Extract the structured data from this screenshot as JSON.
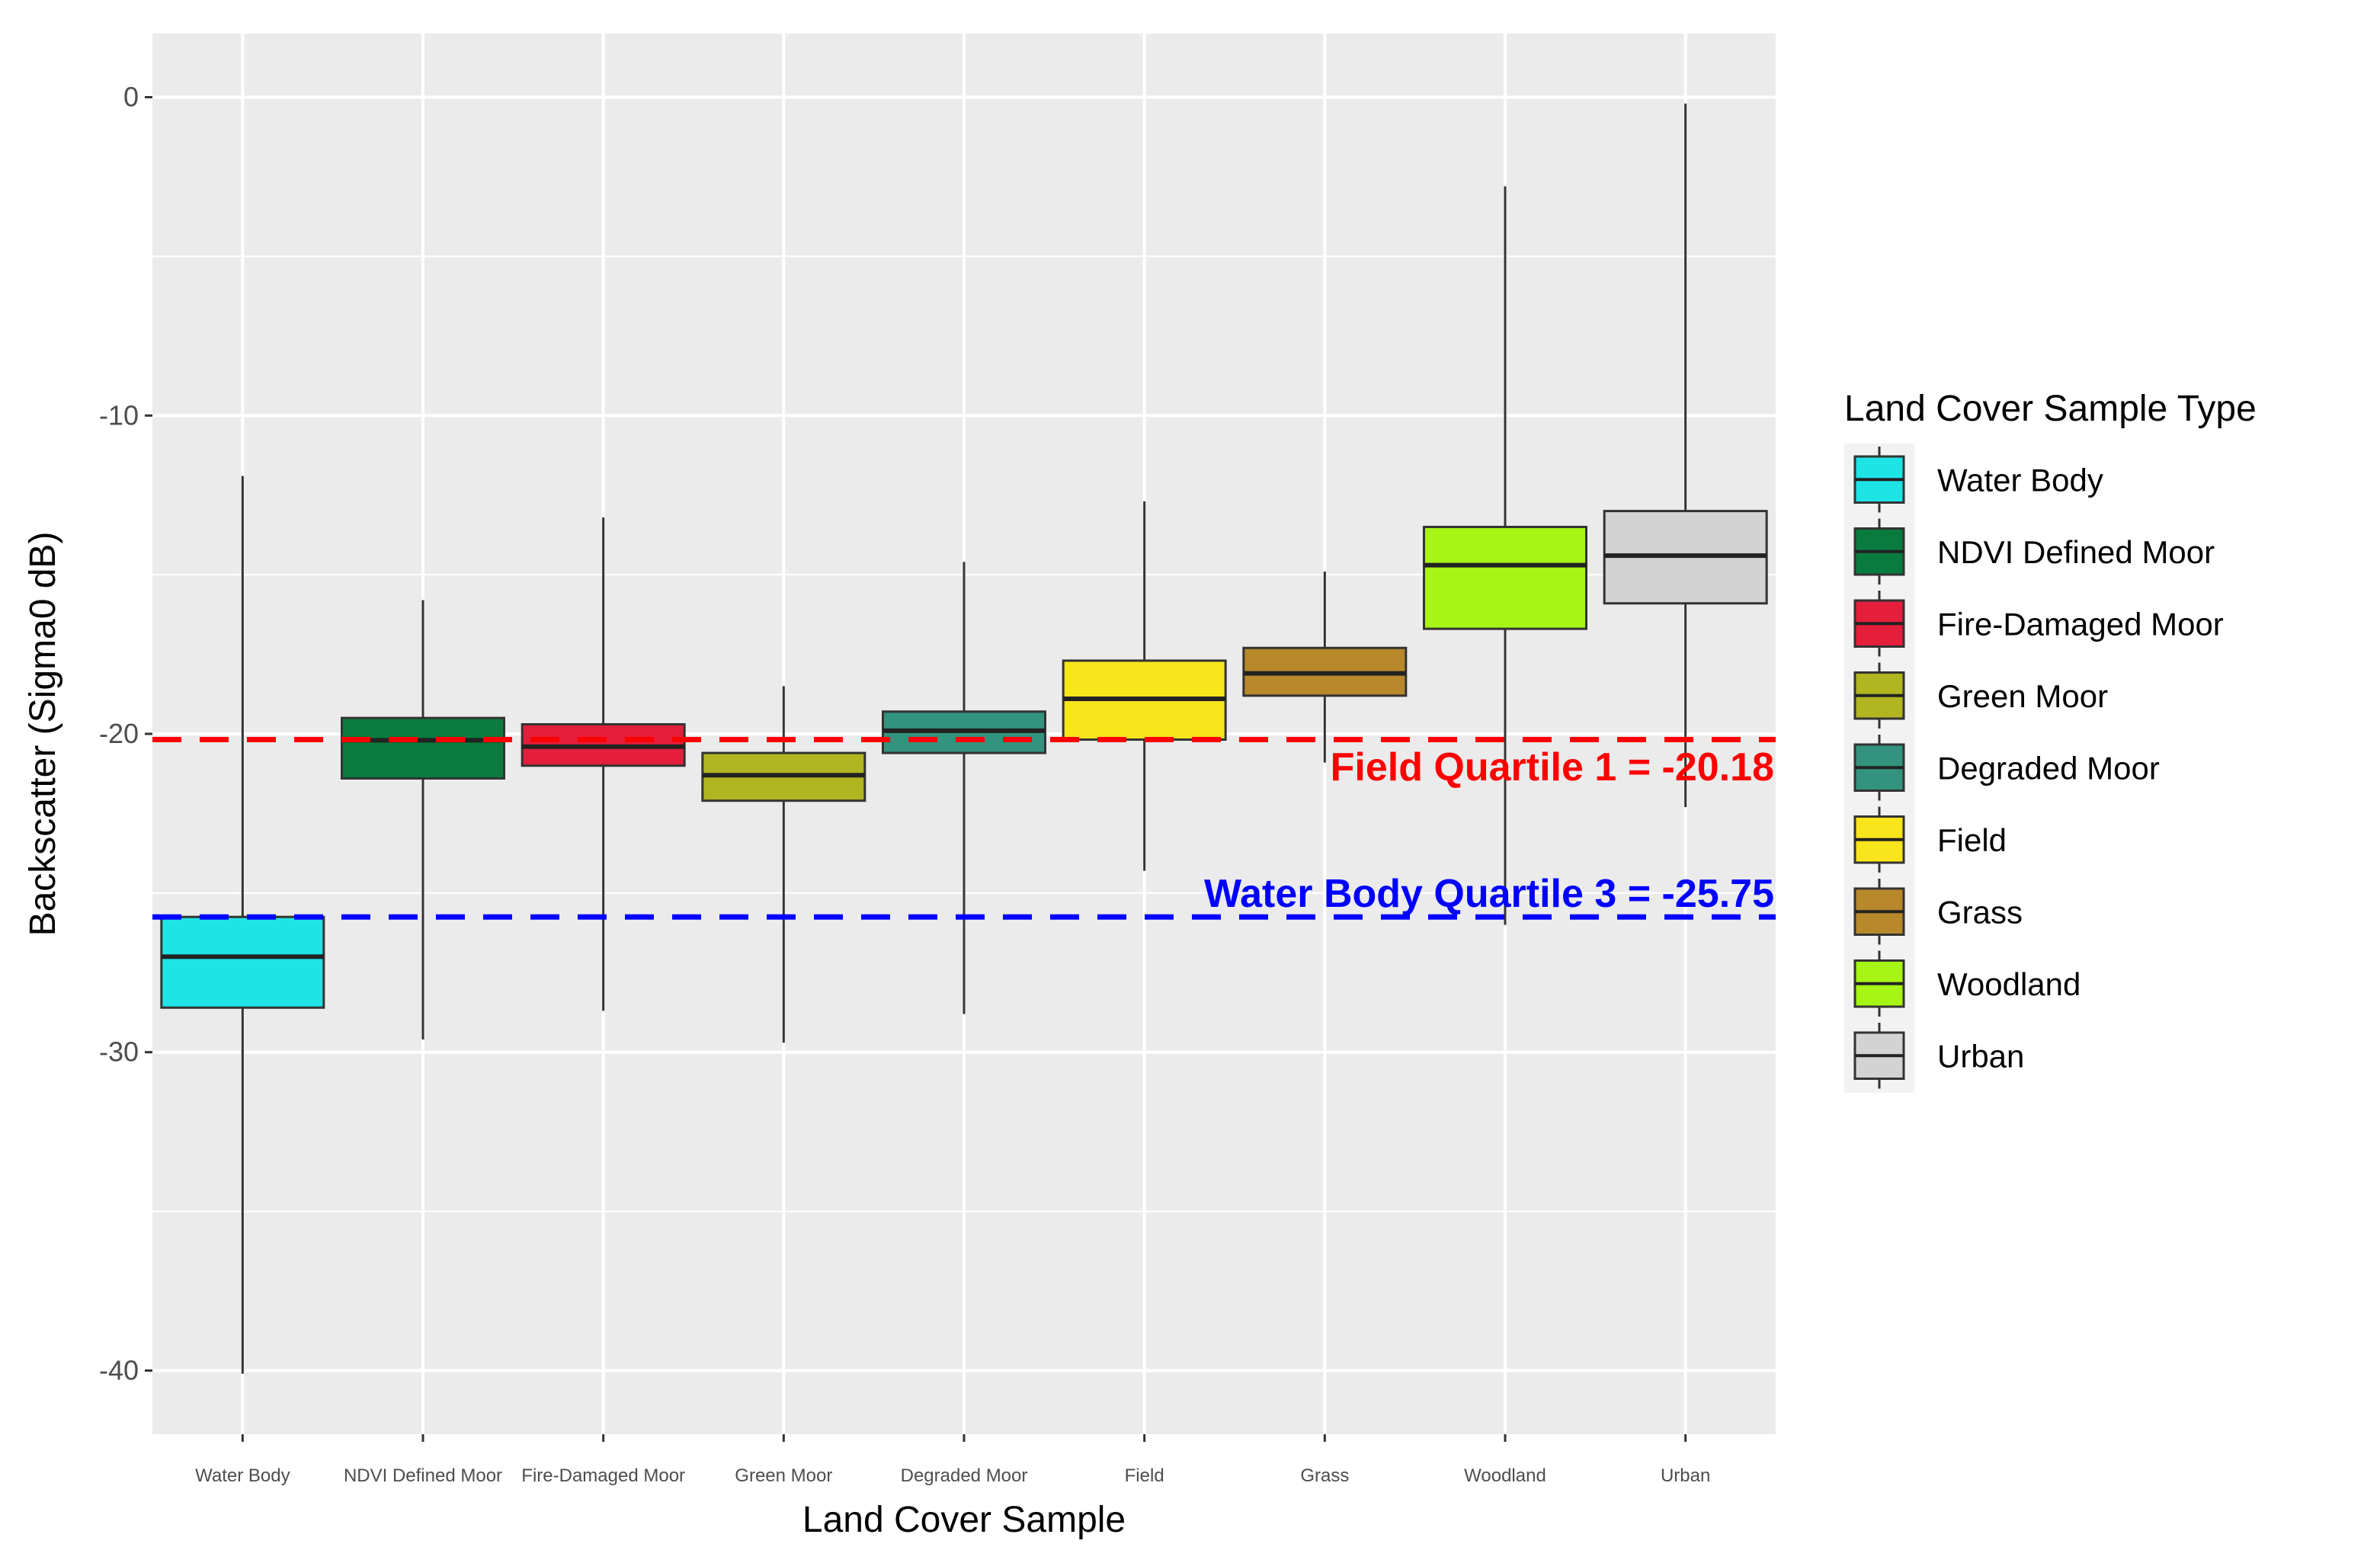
{
  "chart_data": {
    "type": "boxplot",
    "title": "",
    "xlabel": "Land Cover Sample",
    "ylabel": "Backscatter (Sigma0 dB)",
    "ylim": [
      -42,
      2
    ],
    "yticks": [
      0,
      -10,
      -20,
      -30,
      -40
    ],
    "grid": true,
    "legend_title": "Land Cover Sample Type",
    "legend_position": "right",
    "categories": [
      "Water Body",
      "NDVI Defined Moor",
      "Fire-Damaged Moor",
      "Green Moor",
      "Degraded Moor",
      "Field",
      "Grass",
      "Woodland",
      "Urban"
    ],
    "boxes": [
      {
        "name": "Water Body",
        "whisker_low": -40.1,
        "q1": -28.6,
        "median": -27.0,
        "q3": -25.75,
        "whisker_high": -11.9,
        "color": "#1ee4e6"
      },
      {
        "name": "NDVI Defined Moor",
        "whisker_low": -29.6,
        "q1": -21.4,
        "median": -20.2,
        "q3": -19.5,
        "whisker_high": -15.8,
        "color": "#097b3e"
      },
      {
        "name": "Fire-Damaged Moor",
        "whisker_low": -28.7,
        "q1": -21.0,
        "median": -20.4,
        "q3": -19.7,
        "whisker_high": -13.2,
        "color": "#e51e3b"
      },
      {
        "name": "Green Moor",
        "whisker_low": -29.7,
        "q1": -22.1,
        "median": -21.3,
        "q3": -20.6,
        "whisker_high": -18.5,
        "color": "#b0b520"
      },
      {
        "name": "Degraded Moor",
        "whisker_low": -28.8,
        "q1": -20.6,
        "median": -19.9,
        "q3": -19.3,
        "whisker_high": -14.6,
        "color": "#33937e"
      },
      {
        "name": "Field",
        "whisker_low": -24.3,
        "q1": -20.18,
        "median": -18.9,
        "q3": -17.7,
        "whisker_high": -12.7,
        "color": "#f8e51c"
      },
      {
        "name": "Grass",
        "whisker_low": -20.9,
        "q1": -18.8,
        "median": -18.1,
        "q3": -17.3,
        "whisker_high": -14.9,
        "color": "#b8892a"
      },
      {
        "name": "Woodland",
        "whisker_low": -26.0,
        "q1": -16.7,
        "median": -14.7,
        "q3": -13.5,
        "whisker_high": -2.8,
        "color": "#a6f514"
      },
      {
        "name": "Urban",
        "whisker_low": -22.3,
        "q1": -15.9,
        "median": -14.4,
        "q3": -13.0,
        "whisker_high": -0.2,
        "color": "#d3d3d3"
      }
    ],
    "reference_lines": [
      {
        "value": -20.18,
        "label": "Field Quartile 1 = -20.18",
        "color": "#ff0000",
        "style": "dashed"
      },
      {
        "value": -25.75,
        "label": "Water Body Quartile 3 = -25.75",
        "color": "#0000ff",
        "style": "dashed"
      }
    ],
    "style": {
      "panel_bg": "#ebebeb",
      "grid_color": "#ffffff",
      "whisker_color": "#333333",
      "box_outline": "#333333",
      "median_color": "#222222"
    }
  }
}
